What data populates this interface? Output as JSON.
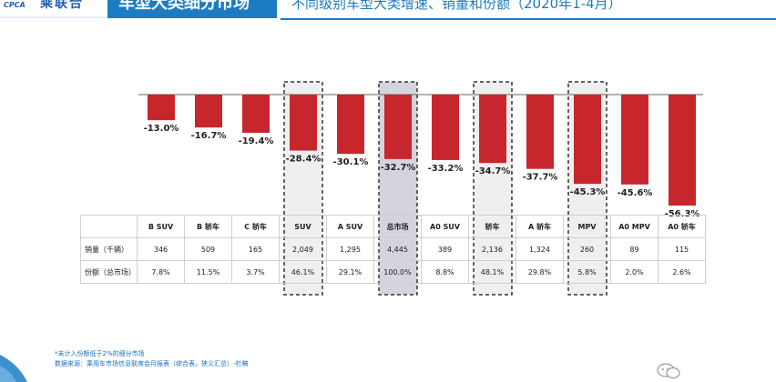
{
  "header": {
    "logo_text": "乘联合",
    "logo_mark": "CPCA",
    "title": "车型大类细分市场",
    "subtitle": "不同级别车型大类增速、销量和份额（2020年1-4月）"
  },
  "colors": {
    "bar": "#c8262d",
    "highlight_fill": "#efefef",
    "highlight_dark_fill": "#d5d4dd",
    "title_bg": "#1b7cc3",
    "footnote": "#1b6dc0"
  },
  "chart_data": {
    "type": "bar",
    "categories": [
      "B SUV",
      "B 轿车",
      "C 轿车",
      "SUV",
      "A SUV",
      "总市场",
      "A0 SUV",
      "轿车",
      "A 轿车",
      "MPV",
      "A0 MPV",
      "A0 轿车"
    ],
    "values": [
      -13.0,
      -16.7,
      -19.4,
      -28.4,
      -30.1,
      -32.7,
      -33.2,
      -34.7,
      -37.7,
      -45.3,
      -45.6,
      -56.3
    ],
    "value_labels": [
      "-13.0%",
      "-16.7%",
      "-19.4%",
      "-28.4%",
      "-30.1%",
      "-32.7%",
      "-33.2%",
      "-34.7%",
      "-37.7%",
      "-45.3%",
      "-45.6%",
      "-56.3%"
    ],
    "highlighted": [
      "SUV",
      "总市场",
      "轿车",
      "MPV"
    ],
    "highlight_dark": [
      "总市场"
    ],
    "ylim": [
      -60,
      0
    ],
    "grid": false
  },
  "table": {
    "rows": [
      {
        "label": "销量（千辆）",
        "values": [
          "346",
          "509",
          "165",
          "2,049",
          "1,295",
          "4,445",
          "389",
          "2,136",
          "1,324",
          "260",
          "89",
          "115"
        ]
      },
      {
        "label": "份额（总市场）",
        "values": [
          "7.8%",
          "11.5%",
          "3.7%",
          "46.1%",
          "29.1%",
          "100.0%",
          "8.8%",
          "48.1%",
          "29.8%",
          "5.8%",
          "2.0%",
          "2.6%"
        ]
      }
    ]
  },
  "footnote": {
    "line1": "*未计入份额低于2%的细分市场",
    "line2": "数据来源：乘用车市场信息联席会月报表（综合表，狭义汇总）-栏稿"
  }
}
